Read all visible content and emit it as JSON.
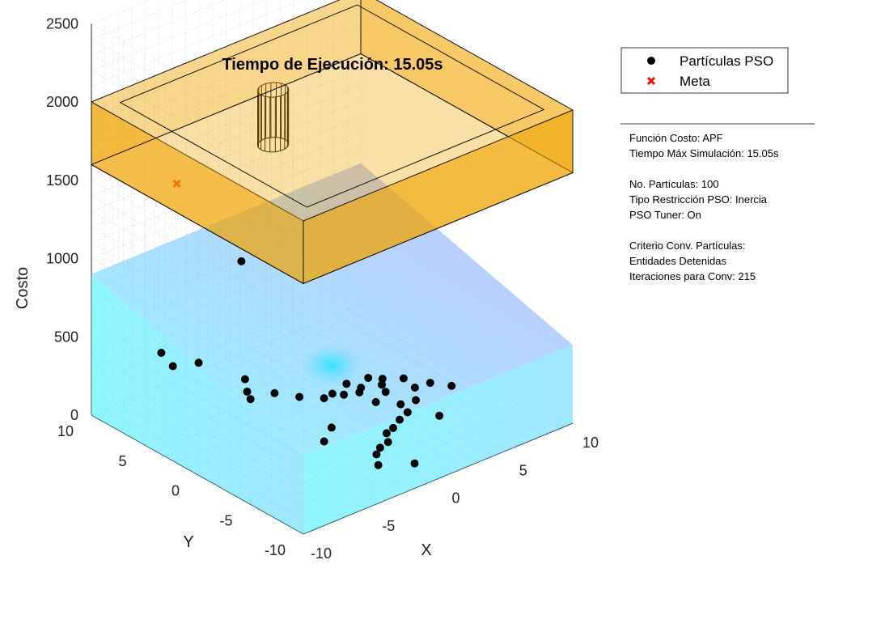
{
  "chart_data": {
    "type": "scatter3d",
    "title": "Tiempo de Ejecución: 15.05s",
    "xlabel": "X",
    "ylabel": "Y",
    "zlabel": "Costo",
    "xlim": [
      -10,
      10
    ],
    "ylim": [
      -10,
      10
    ],
    "zlim": [
      0,
      2500
    ],
    "x_ticks": [
      -10,
      -5,
      0,
      5,
      10
    ],
    "y_ticks": [
      -10,
      -5,
      0,
      5,
      10
    ],
    "z_ticks": [
      0,
      500,
      1000,
      1500,
      2000,
      2500
    ],
    "grid": true,
    "legend_position": "top-right",
    "legend": [
      {
        "label": "Partículas PSO",
        "marker": "circle",
        "color": "#000000"
      },
      {
        "label": "Meta",
        "marker": "x",
        "color": "#ff0000"
      }
    ],
    "colors": {
      "surface_low": "#3ff3ff",
      "surface_high": "#8f88ff",
      "box": "#f0a400",
      "box_edge": "#111111",
      "particle": "#000000",
      "goal": "#ff0000"
    },
    "goal": {
      "x": -7.2,
      "y": 5.5,
      "z": 1550
    },
    "obstacle": {
      "x": 0.5,
      "y": 6.2,
      "radius": 0.9,
      "z_bottom": 1500,
      "z_top": 1850
    },
    "box_region": {
      "x": [
        -10,
        10
      ],
      "y": [
        -10,
        10
      ],
      "z": [
        1600,
        2000
      ]
    },
    "particles": [
      [
        -5.6,
        9.0,
        280
      ],
      [
        -6.0,
        7.4,
        270
      ],
      [
        -4.4,
        7.0,
        250
      ],
      [
        -0.8,
        7.2,
        10
      ],
      [
        -1.9,
        5.6,
        30
      ],
      [
        -2.2,
        4.9,
        20
      ],
      [
        -1.2,
        3.9,
        60
      ],
      [
        -0.3,
        2.7,
        50
      ],
      [
        1.6,
        2.0,
        30
      ],
      [
        1.9,
        1.3,
        40
      ],
      [
        3.4,
        1.6,
        20
      ],
      [
        3.2,
        2.7,
        10
      ],
      [
        4.1,
        1.8,
        50
      ],
      [
        2.5,
        0.6,
        60
      ],
      [
        2.7,
        -0.7,
        40
      ],
      [
        3.9,
        -0.1,
        40
      ],
      [
        4.4,
        0.9,
        30
      ],
      [
        5.0,
        1.6,
        20
      ],
      [
        5.7,
        0.5,
        40
      ],
      [
        5.6,
        -0.7,
        30
      ],
      [
        4.8,
        -1.8,
        20
      ],
      [
        6.5,
        -1.0,
        40
      ],
      [
        7.3,
        -2.0,
        30
      ],
      [
        3.6,
        -1.9,
        40
      ],
      [
        3.4,
        -2.8,
        30
      ],
      [
        2.5,
        -3.2,
        30
      ],
      [
        1.7,
        -3.6,
        20
      ],
      [
        0.9,
        -4.0,
        30
      ],
      [
        0.3,
        -4.9,
        30
      ],
      [
        -0.6,
        -5.3,
        40
      ],
      [
        -1.5,
        -6.1,
        60
      ],
      [
        -2.0,
        -6.9,
        40
      ],
      [
        4.5,
        -4.4,
        30
      ],
      [
        -0.8,
        -8.8,
        80
      ],
      [
        -2.4,
        -2.3,
        30
      ],
      [
        -0.2,
        8.3,
        700
      ],
      [
        0.9,
        1.9,
        30
      ],
      [
        -0.9,
        -1.1,
        20
      ]
    ],
    "info_panel": [
      "Función Costo: APF",
      "Tiempo Máx Simulación: 15.05s",
      "",
      "No. Partículas: 100",
      "Tipo Restricción PSO: Inercia",
      "PSO Tuner: On",
      "",
      "Criterio Conv. Partículas:",
      "Entidades Detenidas",
      "Iteraciones para Conv: 215"
    ]
  }
}
